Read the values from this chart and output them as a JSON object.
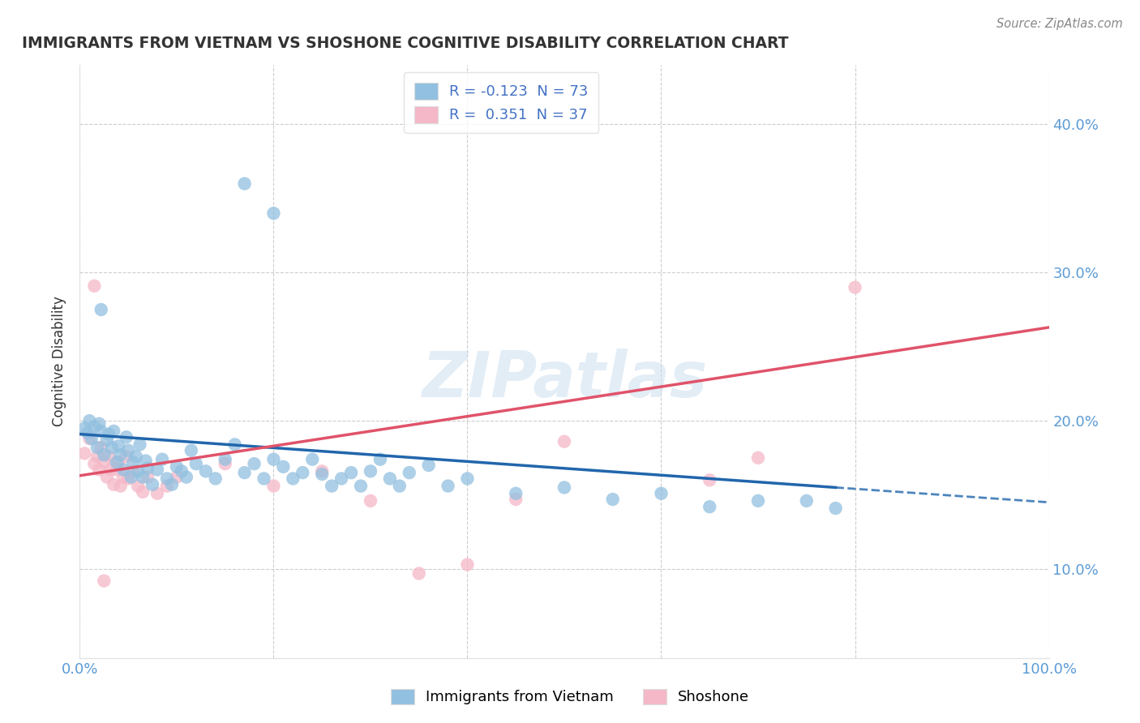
{
  "title": "IMMIGRANTS FROM VIETNAM VS SHOSHONE COGNITIVE DISABILITY CORRELATION CHART",
  "source": "Source: ZipAtlas.com",
  "ylabel": "Cognitive Disability",
  "xlim": [
    0.0,
    1.0
  ],
  "ylim": [
    0.04,
    0.44
  ],
  "yticks": [
    0.1,
    0.2,
    0.3,
    0.4
  ],
  "ytick_labels": [
    "10.0%",
    "20.0%",
    "30.0%",
    "40.0%"
  ],
  "xticks": [
    0.0,
    0.2,
    0.4,
    0.6,
    0.8,
    1.0
  ],
  "xtick_labels": [
    "0.0%",
    "",
    "",
    "",
    "",
    "100.0%"
  ],
  "legend_r1_pre": "R = ",
  "legend_r1_val": "-0.123",
  "legend_r1_n_pre": "  N = ",
  "legend_r1_n_val": "73",
  "legend_r2_pre": "R =  ",
  "legend_r2_val": "0.351",
  "legend_r2_n_pre": "  N = ",
  "legend_r2_n_val": "37",
  "blue_color": "#92c0e0",
  "pink_color": "#f5b8c8",
  "blue_line_color": "#2166ac",
  "pink_line_color": "#e0536a",
  "watermark": "ZIPatlas",
  "background_color": "#ffffff",
  "grid_color": "#c8c8c8",
  "title_color": "#333333",
  "axis_label_color": "#5b9bd5",
  "text_dark": "#333333",
  "text_blue": "#4472c4",
  "blue_scatter": [
    [
      0.005,
      0.195
    ],
    [
      0.008,
      0.192
    ],
    [
      0.01,
      0.2
    ],
    [
      0.012,
      0.188
    ],
    [
      0.015,
      0.196
    ],
    [
      0.018,
      0.182
    ],
    [
      0.02,
      0.198
    ],
    [
      0.022,
      0.193
    ],
    [
      0.025,
      0.177
    ],
    [
      0.028,
      0.187
    ],
    [
      0.03,
      0.191
    ],
    [
      0.033,
      0.182
    ],
    [
      0.035,
      0.193
    ],
    [
      0.038,
      0.172
    ],
    [
      0.04,
      0.183
    ],
    [
      0.042,
      0.177
    ],
    [
      0.045,
      0.167
    ],
    [
      0.048,
      0.189
    ],
    [
      0.05,
      0.18
    ],
    [
      0.053,
      0.162
    ],
    [
      0.055,
      0.172
    ],
    [
      0.058,
      0.176
    ],
    [
      0.06,
      0.166
    ],
    [
      0.062,
      0.184
    ],
    [
      0.065,
      0.162
    ],
    [
      0.068,
      0.173
    ],
    [
      0.07,
      0.168
    ],
    [
      0.075,
      0.157
    ],
    [
      0.08,
      0.167
    ],
    [
      0.085,
      0.174
    ],
    [
      0.09,
      0.161
    ],
    [
      0.095,
      0.157
    ],
    [
      0.1,
      0.169
    ],
    [
      0.105,
      0.166
    ],
    [
      0.11,
      0.162
    ],
    [
      0.115,
      0.18
    ],
    [
      0.12,
      0.171
    ],
    [
      0.13,
      0.166
    ],
    [
      0.14,
      0.161
    ],
    [
      0.15,
      0.174
    ],
    [
      0.16,
      0.184
    ],
    [
      0.17,
      0.165
    ],
    [
      0.18,
      0.171
    ],
    [
      0.19,
      0.161
    ],
    [
      0.2,
      0.174
    ],
    [
      0.21,
      0.169
    ],
    [
      0.22,
      0.161
    ],
    [
      0.23,
      0.165
    ],
    [
      0.24,
      0.174
    ],
    [
      0.25,
      0.164
    ],
    [
      0.26,
      0.156
    ],
    [
      0.27,
      0.161
    ],
    [
      0.28,
      0.165
    ],
    [
      0.29,
      0.156
    ],
    [
      0.3,
      0.166
    ],
    [
      0.31,
      0.174
    ],
    [
      0.32,
      0.161
    ],
    [
      0.33,
      0.156
    ],
    [
      0.34,
      0.165
    ],
    [
      0.36,
      0.17
    ],
    [
      0.38,
      0.156
    ],
    [
      0.4,
      0.161
    ],
    [
      0.45,
      0.151
    ],
    [
      0.5,
      0.155
    ],
    [
      0.55,
      0.147
    ],
    [
      0.6,
      0.151
    ],
    [
      0.65,
      0.142
    ],
    [
      0.7,
      0.146
    ],
    [
      0.75,
      0.146
    ],
    [
      0.17,
      0.36
    ],
    [
      0.2,
      0.34
    ],
    [
      0.022,
      0.275
    ],
    [
      0.78,
      0.141
    ]
  ],
  "pink_scatter": [
    [
      0.005,
      0.178
    ],
    [
      0.01,
      0.188
    ],
    [
      0.015,
      0.171
    ],
    [
      0.018,
      0.176
    ],
    [
      0.02,
      0.167
    ],
    [
      0.022,
      0.182
    ],
    [
      0.025,
      0.172
    ],
    [
      0.028,
      0.162
    ],
    [
      0.03,
      0.176
    ],
    [
      0.032,
      0.167
    ],
    [
      0.035,
      0.157
    ],
    [
      0.038,
      0.167
    ],
    [
      0.04,
      0.172
    ],
    [
      0.042,
      0.156
    ],
    [
      0.045,
      0.162
    ],
    [
      0.048,
      0.176
    ],
    [
      0.05,
      0.161
    ],
    [
      0.055,
      0.166
    ],
    [
      0.06,
      0.156
    ],
    [
      0.065,
      0.152
    ],
    [
      0.07,
      0.162
    ],
    [
      0.08,
      0.151
    ],
    [
      0.09,
      0.156
    ],
    [
      0.1,
      0.162
    ],
    [
      0.15,
      0.171
    ],
    [
      0.2,
      0.156
    ],
    [
      0.25,
      0.166
    ],
    [
      0.3,
      0.146
    ],
    [
      0.45,
      0.147
    ],
    [
      0.5,
      0.186
    ],
    [
      0.65,
      0.16
    ],
    [
      0.7,
      0.175
    ],
    [
      0.8,
      0.29
    ],
    [
      0.015,
      0.291
    ],
    [
      0.025,
      0.092
    ],
    [
      0.35,
      0.097
    ],
    [
      0.4,
      0.103
    ]
  ],
  "blue_line": [
    [
      0.0,
      0.191
    ],
    [
      0.78,
      0.155
    ]
  ],
  "pink_line": [
    [
      0.0,
      0.163
    ],
    [
      1.0,
      0.263
    ]
  ],
  "blue_dash_line": [
    [
      0.78,
      0.155
    ],
    [
      1.0,
      0.145
    ]
  ]
}
